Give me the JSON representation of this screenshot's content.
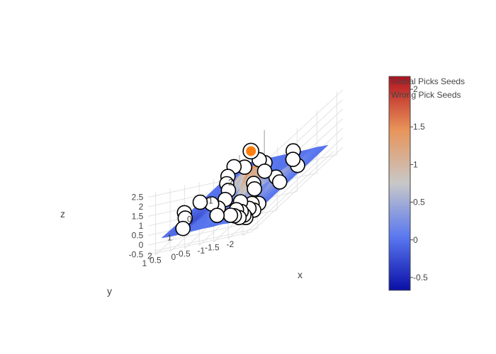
{
  "chart_data": {
    "type": "surface3d",
    "title": "",
    "axes": {
      "x": {
        "label": "x",
        "ticks": [
          "-2",
          "-1",
          "0",
          "1",
          "2"
        ]
      },
      "y": {
        "label": "y",
        "ticks": [
          "-2",
          "-1.5",
          "-1",
          "-0.5",
          "0",
          "0.5",
          "1"
        ]
      },
      "z": {
        "label": "z",
        "ticks": [
          "-0.5",
          "0",
          "0.5",
          "1",
          "1.5",
          "2",
          "2.5"
        ]
      }
    },
    "colorbar": {
      "ticks": [
        "2",
        "1.5",
        "1",
        "0.5",
        "0",
        "-0.5"
      ],
      "tick_values": [
        2,
        1.5,
        1,
        0.5,
        0,
        -0.5
      ],
      "range": [
        -0.67,
        2.17
      ],
      "colors": [
        "#0a0fa6",
        "#5a78f0",
        "#c8c8c8",
        "#e8945a",
        "#b40f1e"
      ]
    },
    "series": [
      {
        "name": "Global Picks Seeds",
        "marker_color": "#ff7f0e",
        "points": [
          [
            0.35,
            -0.95,
            2.3
          ]
        ]
      },
      {
        "name": "Wrong Pick Seeds",
        "marker_color": "#ffffff",
        "points": [
          [
            1.9,
            -1.6,
            0.1
          ],
          [
            1.6,
            -1.9,
            0.1
          ],
          [
            2.0,
            -1.9,
            0.1
          ],
          [
            1.7,
            -1.3,
            0.1
          ],
          [
            1.4,
            -1.6,
            0.1
          ],
          [
            1.8,
            -1.7,
            0.1
          ],
          [
            1.5,
            -1.4,
            0.1
          ],
          [
            1.2,
            -1.8,
            0.1
          ],
          [
            1.6,
            -1.1,
            0.1
          ],
          [
            1.1,
            -1.5,
            0.1
          ],
          [
            0.8,
            -0.9,
            0.1
          ],
          [
            0.9,
            -0.2,
            0.1
          ],
          [
            1.4,
            -0.5,
            0.1
          ],
          [
            0.5,
            0.3,
            0.1
          ],
          [
            1.8,
            0.4,
            0.1
          ],
          [
            0.0,
            -1.7,
            0.1
          ],
          [
            -0.4,
            -1.3,
            0.1
          ],
          [
            -1.0,
            -0.5,
            0.1
          ],
          [
            -1.6,
            -0.1,
            0.1
          ],
          [
            -1.9,
            0.3,
            0.1
          ],
          [
            -0.7,
            0.6,
            0.1
          ],
          [
            -1.2,
            0.9,
            0.1
          ],
          [
            -1.8,
            1.1,
            0.1
          ],
          [
            0.2,
            0.9,
            0.1
          ],
          [
            1.1,
            0.8,
            0.1
          ],
          [
            -0.3,
            -0.6,
            0.1
          ],
          [
            0.4,
            -0.1,
            0.1
          ],
          [
            -1.4,
            -1.2,
            0.1
          ],
          [
            -2.0,
            -0.8,
            0.1
          ],
          [
            0.7,
            1.1,
            0.1
          ],
          [
            -0.2,
            0.2,
            0.1
          ],
          [
            -0.9,
            -1.7,
            0.1
          ],
          [
            1.3,
            -1.1,
            0.1
          ],
          [
            -1.6,
            0.6,
            0.1
          ],
          [
            0.1,
            -0.9,
            0.1
          ]
        ]
      }
    ]
  }
}
